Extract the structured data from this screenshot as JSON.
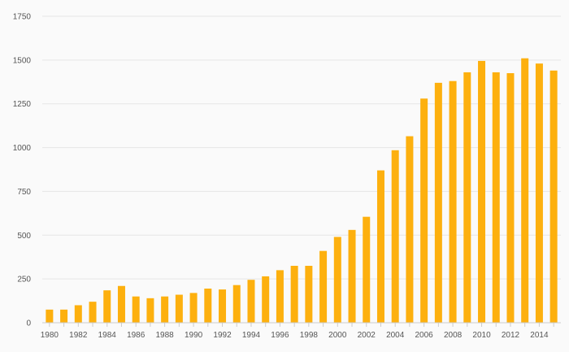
{
  "chart_data": {
    "type": "bar",
    "title": "",
    "xlabel": "",
    "ylabel": "",
    "categories": [
      "1980",
      "1981",
      "1982",
      "1983",
      "1984",
      "1985",
      "1986",
      "1987",
      "1988",
      "1989",
      "1990",
      "1991",
      "1992",
      "1993",
      "1994",
      "1995",
      "1996",
      "1997",
      "1998",
      "1999",
      "2000",
      "2001",
      "2002",
      "2003",
      "2004",
      "2005",
      "2006",
      "2007",
      "2008",
      "2009",
      "2010",
      "2011",
      "2012",
      "2013",
      "2014",
      "2015"
    ],
    "values": [
      75,
      75,
      100,
      120,
      185,
      210,
      150,
      140,
      150,
      160,
      170,
      195,
      190,
      215,
      245,
      265,
      300,
      325,
      325,
      410,
      490,
      530,
      605,
      870,
      985,
      1065,
      1280,
      1370,
      1380,
      1430,
      1495,
      1430,
      1425,
      1510,
      1480,
      1440
    ],
    "x_tick_labels": [
      "1980",
      "1982",
      "1984",
      "1986",
      "1988",
      "1990",
      "1992",
      "1994",
      "1996",
      "1998",
      "2000",
      "2002",
      "2004",
      "2006",
      "2008",
      "2010",
      "2012",
      "2014"
    ],
    "y_ticks": [
      0,
      250,
      500,
      750,
      1000,
      1250,
      1500,
      1750
    ],
    "ylim": [
      0,
      1750
    ],
    "grid": true,
    "legend": "none",
    "colors": {
      "bar": "#fdb00e",
      "grid": "#e6e6e6",
      "axis": "#cccccc",
      "text": "#555555",
      "background": "#fafafa"
    }
  }
}
